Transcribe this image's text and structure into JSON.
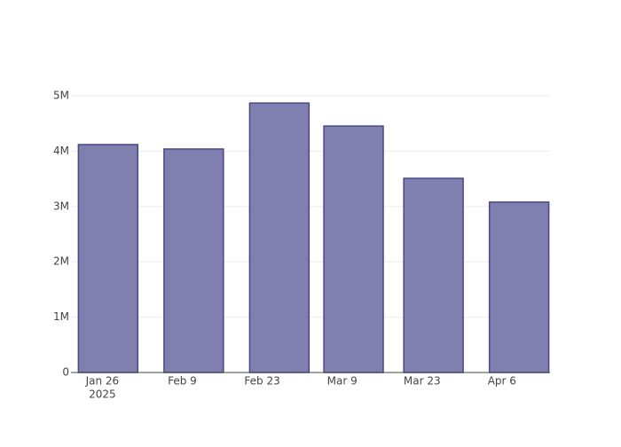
{
  "chart_data": {
    "type": "bar",
    "x": [
      "2025-01-27",
      "2025-02-11",
      "2025-02-26",
      "2025-03-11",
      "2025-03-25",
      "2025-04-09"
    ],
    "values": [
      4120000,
      4040000,
      4870000,
      4455000,
      3510000,
      3080000
    ],
    "color": "#7f7fb0",
    "edge_color": "#4a4785",
    "xlim": [
      "2025-01-20T12:00:00Z",
      "2025-04-14T10:00:00Z"
    ],
    "xticks": [
      {
        "value": "2025-01-26",
        "label": "Jan 26"
      },
      {
        "value": "2025-02-09",
        "label": "Feb 9"
      },
      {
        "value": "2025-02-23",
        "label": "Feb 23"
      },
      {
        "value": "2025-03-09",
        "label": "Mar 9"
      },
      {
        "value": "2025-03-23",
        "label": "Mar 23"
      },
      {
        "value": "2025-04-06",
        "label": "Apr 6"
      }
    ],
    "xtick_year": "2025",
    "ylim": [
      0,
      5130000
    ],
    "yticks": [
      0,
      {
        "value": 1000000,
        "label": "1M"
      },
      {
        "value": 2000000,
        "label": "2M"
      },
      {
        "value": 3000000,
        "label": "3M"
      },
      {
        "value": 4000000,
        "label": "4M"
      },
      {
        "value": 5000000,
        "label": "5M"
      }
    ],
    "grid": true
  }
}
